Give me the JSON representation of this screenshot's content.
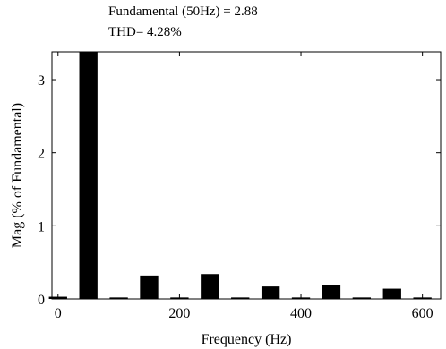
{
  "chart_data": {
    "type": "bar",
    "title_lines": [
      "Fundamental (50Hz) = 2.88",
      "THD= 4.28%"
    ],
    "xlabel": "Frequency (Hz)",
    "ylabel": "Mag (% of Fundamental)",
    "xlim": [
      -10,
      630
    ],
    "ylim": [
      0,
      3.38
    ],
    "xticks": [
      0,
      200,
      400,
      600
    ],
    "yticks": [
      0,
      1,
      2,
      3
    ],
    "grid": false,
    "bar_width_hz": 30,
    "x": [
      0,
      50,
      100,
      150,
      200,
      250,
      300,
      350,
      400,
      450,
      500,
      550,
      600
    ],
    "values": [
      0.03,
      3.38,
      0.02,
      0.32,
      0.02,
      0.34,
      0.02,
      0.17,
      0.02,
      0.19,
      0.02,
      0.14,
      0.02
    ],
    "color": "#000000"
  }
}
